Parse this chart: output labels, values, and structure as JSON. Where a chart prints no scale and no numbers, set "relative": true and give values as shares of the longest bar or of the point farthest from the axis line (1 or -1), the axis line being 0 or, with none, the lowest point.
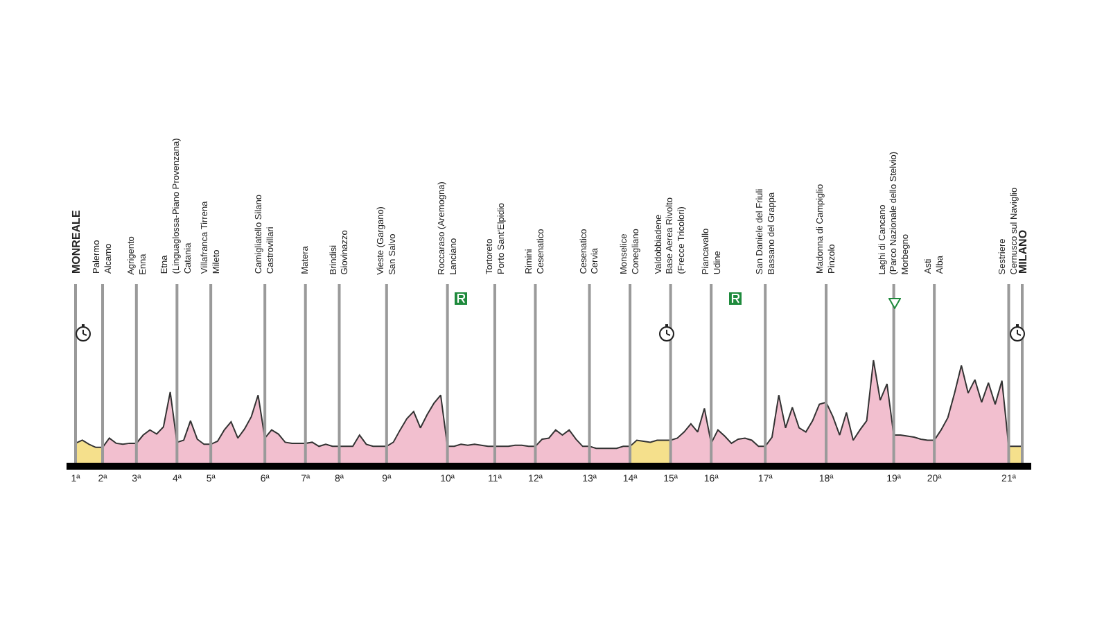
{
  "chart_data": {
    "type": "area",
    "relative": true,
    "grid": false,
    "tick_labels": "x",
    "categories": [
      "1ª",
      null,
      null,
      null,
      "2ª",
      null,
      null,
      null,
      null,
      "3ª",
      null,
      null,
      null,
      null,
      null,
      "4ª",
      null,
      null,
      null,
      null,
      "5ª",
      null,
      null,
      null,
      null,
      null,
      null,
      null,
      "6ª",
      null,
      null,
      null,
      null,
      null,
      "7ª",
      null,
      null,
      null,
      null,
      "8ª",
      null,
      null,
      null,
      null,
      null,
      null,
      "9ª",
      null,
      null,
      null,
      null,
      null,
      null,
      null,
      null,
      "10ª",
      null,
      null,
      null,
      null,
      null,
      null,
      "11ª",
      null,
      null,
      null,
      null,
      null,
      "12ª",
      null,
      null,
      null,
      null,
      null,
      null,
      null,
      "13ª",
      null,
      null,
      null,
      null,
      null,
      "14ª",
      null,
      null,
      null,
      null,
      null,
      "15ª",
      null,
      null,
      null,
      null,
      null,
      "16ª",
      null,
      null,
      null,
      null,
      null,
      null,
      null,
      "17ª",
      null,
      null,
      null,
      null,
      null,
      null,
      null,
      null,
      "18ª",
      null,
      null,
      null,
      null,
      null,
      null,
      null,
      null,
      null,
      "19ª",
      null,
      null,
      null,
      null,
      null,
      "20ª",
      null,
      null,
      null,
      null,
      null,
      null,
      null,
      null,
      null,
      null,
      "21ª",
      null,
      null
    ],
    "series": [
      {
        "color": "#f2bfcf",
        "values": [
          null,
          null,
          null,
          null,
          0.15,
          0.24,
          0.19,
          0.18,
          0.19,
          0.19,
          0.27,
          0.32,
          0.28,
          0.35,
          0.69,
          0.2,
          0.22,
          0.41,
          0.23,
          0.18,
          0.18,
          0.21,
          0.32,
          0.4,
          0.24,
          0.33,
          0.45,
          0.66,
          0.24,
          0.32,
          0.28,
          0.2,
          0.19,
          0.19,
          0.19,
          0.2,
          0.16,
          0.18,
          0.16,
          0.16,
          0.16,
          0.16,
          0.27,
          0.18,
          0.16,
          0.16,
          0.16,
          0.2,
          0.32,
          0.43,
          0.5,
          0.34,
          0.47,
          0.58,
          0.66,
          0.16,
          0.16,
          0.18,
          0.17,
          0.18,
          0.17,
          0.16,
          0.16,
          0.16,
          0.16,
          0.17,
          0.17,
          0.16,
          0.16,
          0.23,
          0.24,
          0.32,
          0.27,
          0.32,
          0.23,
          0.16,
          0.16,
          0.14,
          0.14,
          0.14,
          0.14,
          0.16,
          0.16,
          null,
          null,
          null,
          null,
          null,
          0.22,
          0.24,
          0.3,
          0.38,
          0.3,
          0.53,
          0.19,
          0.32,
          0.26,
          0.19,
          0.23,
          0.24,
          0.22,
          0.16,
          0.16,
          0.25,
          0.66,
          0.34,
          0.54,
          0.34,
          0.3,
          0.41,
          0.57,
          0.59,
          0.45,
          0.27,
          0.49,
          0.22,
          0.32,
          0.41,
          1,
          0.61,
          0.77,
          0.27,
          0.27,
          0.26,
          0.25,
          0.23,
          0.22,
          0.22,
          0.32,
          0.44,
          0.68,
          0.95,
          0.68,
          0.81,
          0.59,
          0.78,
          0.57,
          0.8,
          0.16,
          null,
          null
        ]
      },
      {
        "color": "#f5e08c",
        "values": [
          0.19,
          0.22,
          0.18,
          0.15,
          0.15,
          null,
          null,
          null,
          null,
          null,
          null,
          null,
          null,
          null,
          null,
          null,
          null,
          null,
          null,
          null,
          null,
          null,
          null,
          null,
          null,
          null,
          null,
          null,
          null,
          null,
          null,
          null,
          null,
          null,
          null,
          null,
          null,
          null,
          null,
          null,
          null,
          null,
          null,
          null,
          null,
          null,
          null,
          null,
          null,
          null,
          null,
          null,
          null,
          null,
          null,
          null,
          null,
          null,
          null,
          null,
          null,
          null,
          null,
          null,
          null,
          null,
          null,
          null,
          null,
          null,
          null,
          null,
          null,
          null,
          null,
          null,
          null,
          null,
          null,
          null,
          null,
          null,
          0.16,
          0.22,
          0.21,
          0.2,
          0.22,
          0.22,
          0.22,
          null,
          null,
          null,
          null,
          null,
          null,
          null,
          null,
          null,
          null,
          null,
          null,
          null,
          null,
          null,
          null,
          null,
          null,
          null,
          null,
          null,
          null,
          null,
          null,
          null,
          null,
          null,
          null,
          null,
          null,
          null,
          null,
          null,
          null,
          null,
          null,
          null,
          null,
          null,
          null,
          null,
          null,
          null,
          null,
          null,
          null,
          null,
          null,
          null,
          0.16,
          0.16,
          0.16
        ]
      }
    ],
    "annotations": [
      "MONREALE",
      "Palermo\nAlcamo",
      "Agrigento\nEnna",
      "Etna\n(Linguaglossa-Piano Provenzana)\nCatania",
      "Villafranca Tirrena\nMileto",
      "Camigliatello Silano\nCastrovillari",
      "Matera",
      "Brindisi\nGiovinazzo",
      "Vieste (Gargano)\nSan Salvo",
      "Roccaraso (Aremogna)\nLanciano",
      "Tortoreto\nPorto Sant'Elpidio",
      "Rimini\nCesenatico",
      "Cesenatico\nCervia",
      "Monselice\nConegliano",
      "Valdobbiadene\nBase Aerea Rivolto\n(Frecce Tricolori)",
      "Piancavallo\nUdine",
      "San Daniele del Friuli\nBassano del Grappa",
      "Madonna di Campiglio\nPinzolo",
      "Laghi di Cancano\n(Parco Nazionale dello Stelvio)\nMorbegno",
      "Asti\nAlba",
      "Sestriere\nCernusco sul Naviglio",
      "MILANO"
    ]
  }
}
